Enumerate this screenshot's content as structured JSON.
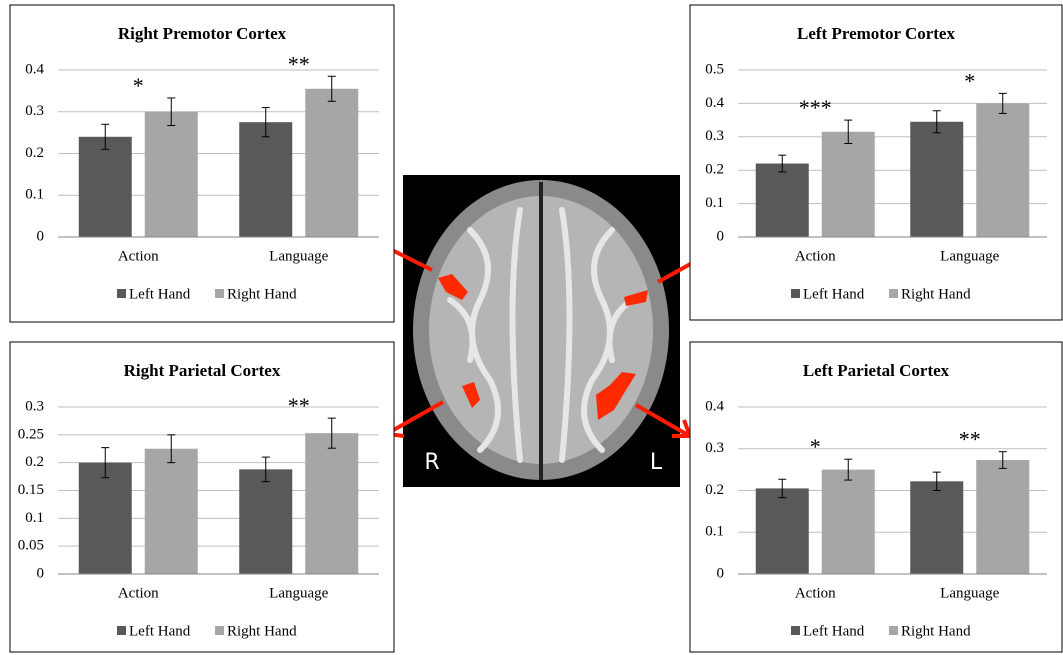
{
  "chart_data": [
    {
      "type": "bar",
      "title": "Right Premotor Cortex",
      "categories": [
        "Action",
        "Language"
      ],
      "series": [
        {
          "name": "Left Hand",
          "color": "#595959",
          "values": [
            0.24,
            0.275
          ],
          "errors": [
            0.03,
            0.035
          ]
        },
        {
          "name": "Right Hand",
          "color": "#a6a6a6",
          "values": [
            0.3,
            0.355
          ],
          "errors": [
            0.033,
            0.03
          ]
        }
      ],
      "significance": [
        "*",
        "**"
      ],
      "ylim": [
        0,
        0.4
      ],
      "yticks": [
        0,
        0.1,
        0.2,
        0.3,
        0.4
      ],
      "grid": true
    },
    {
      "type": "bar",
      "title": "Left Premotor Cortex",
      "categories": [
        "Action",
        "Language"
      ],
      "series": [
        {
          "name": "Left Hand",
          "color": "#595959",
          "values": [
            0.22,
            0.345
          ],
          "errors": [
            0.025,
            0.033
          ]
        },
        {
          "name": "Right Hand",
          "color": "#a6a6a6",
          "values": [
            0.315,
            0.4
          ],
          "errors": [
            0.035,
            0.03
          ]
        }
      ],
      "significance": [
        "***",
        "*"
      ],
      "ylim": [
        0,
        0.5
      ],
      "yticks": [
        0,
        0.1,
        0.2,
        0.3,
        0.4,
        0.5
      ],
      "grid": true
    },
    {
      "type": "bar",
      "title": "Right Parietal Cortex",
      "categories": [
        "Action",
        "Language"
      ],
      "series": [
        {
          "name": "Left Hand",
          "color": "#595959",
          "values": [
            0.2,
            0.188
          ],
          "errors": [
            0.027,
            0.022
          ]
        },
        {
          "name": "Right Hand",
          "color": "#a6a6a6",
          "values": [
            0.225,
            0.253
          ],
          "errors": [
            0.025,
            0.027
          ]
        }
      ],
      "significance": [
        null,
        "**"
      ],
      "ylim": [
        0,
        0.3
      ],
      "yticks": [
        0,
        0.05,
        0.1,
        0.15,
        0.2,
        0.25,
        0.3
      ],
      "grid": true
    },
    {
      "type": "bar",
      "title": "Left Parietal Cortex",
      "categories": [
        "Action",
        "Language"
      ],
      "series": [
        {
          "name": "Left Hand",
          "color": "#595959",
          "values": [
            0.205,
            0.222
          ],
          "errors": [
            0.022,
            0.022
          ]
        },
        {
          "name": "Right Hand",
          "color": "#a6a6a6",
          "values": [
            0.25,
            0.273
          ],
          "errors": [
            0.025,
            0.02
          ]
        }
      ],
      "significance": [
        "*",
        "**"
      ],
      "ylim": [
        0,
        0.4
      ],
      "yticks": [
        0,
        0.1,
        0.2,
        0.3,
        0.4
      ],
      "grid": true
    }
  ],
  "image_labels": [
    "R",
    "L"
  ]
}
